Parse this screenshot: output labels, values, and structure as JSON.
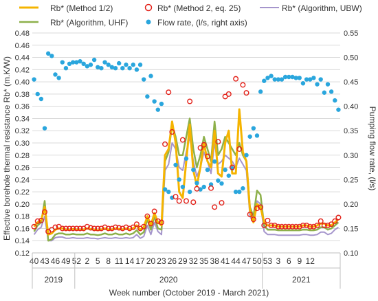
{
  "chart_data": {
    "type": "line",
    "xlabel": "Week number (October 2019 - March 2021)",
    "y_left_label": "Effective borehole thermal resistance Rb* (m.K/W)",
    "y_right_label": "Pumping flow rate, (l/s)",
    "y_left_range": [
      0.12,
      0.48
    ],
    "y_left_ticks": [
      "0.12",
      "0.14",
      "0.16",
      "0.18",
      "0.20",
      "0.22",
      "0.24",
      "0.26",
      "0.28",
      "0.30",
      "0.32",
      "0.34",
      "0.36",
      "0.38",
      "0.40",
      "0.42",
      "0.44",
      "0.46",
      "0.48"
    ],
    "y_right_range": [
      0.1,
      0.55
    ],
    "y_right_ticks": [
      "0.10",
      "0.15",
      "0.20",
      "0.25",
      "0.30",
      "0.35",
      "0.40",
      "0.45",
      "0.50",
      "0.55"
    ],
    "x_tick_labels": [
      "40",
      "43",
      "46",
      "49",
      "52",
      "2",
      "5",
      "8",
      "11",
      "14",
      "17",
      "20",
      "23",
      "26",
      "29",
      "32",
      "35",
      "38",
      "41",
      "44",
      "47",
      "50",
      "53",
      "3",
      "6",
      "9",
      "12"
    ],
    "years": [
      "2019",
      "2020",
      "2021"
    ],
    "grid": "horizontal",
    "legend": [
      {
        "label": "Rb* (Method 1/2)",
        "color": "#f5b400",
        "style": "line"
      },
      {
        "label": "Rb* (Method 2, eq. 25)",
        "color": "#e32119",
        "style": "open-circle"
      },
      {
        "label": "Rb* (Algorithm, UBW)",
        "color": "#a595cc",
        "style": "line"
      },
      {
        "label": "Rb* (Algorithm, UHF)",
        "color": "#8db04a",
        "style": "line"
      },
      {
        "label": "Flow rate, (l/s, right axis)",
        "color": "#2aa6dd",
        "style": "dot"
      }
    ],
    "series": [
      {
        "name": "Rb* (Method 1/2)",
        "axis": "left",
        "values": [
          0.163,
          0.17,
          0.173,
          0.195,
          0.15,
          0.152,
          0.158,
          0.16,
          0.16,
          0.158,
          0.158,
          0.159,
          0.158,
          0.158,
          0.158,
          0.16,
          0.159,
          0.158,
          0.157,
          0.158,
          0.16,
          0.158,
          0.158,
          0.16,
          0.159,
          0.158,
          0.16,
          0.158,
          0.16,
          0.165,
          0.158,
          0.162,
          0.18,
          0.165,
          0.185,
          0.17,
          0.165,
          0.28,
          0.29,
          0.335,
          0.3,
          0.22,
          0.21,
          0.27,
          0.33,
          0.255,
          0.23,
          0.26,
          0.3,
          0.27,
          0.26,
          0.32,
          0.25,
          0.245,
          0.3,
          0.32,
          0.25,
          0.25,
          0.355,
          0.285,
          0.27,
          0.19,
          0.17,
          0.2,
          0.195,
          0.17,
          0.165,
          0.165,
          0.165,
          0.163,
          0.163,
          0.163,
          0.163,
          0.163,
          0.163,
          0.163,
          0.165,
          0.165,
          0.163,
          0.163,
          0.165,
          0.168,
          0.168,
          0.165,
          0.165,
          0.17,
          0.175
        ]
      },
      {
        "name": "Rb* (Algorithm, UHF)",
        "axis": "left",
        "values": [
          0.155,
          0.165,
          0.17,
          0.205,
          0.14,
          0.142,
          0.15,
          0.152,
          0.152,
          0.15,
          0.15,
          0.151,
          0.15,
          0.15,
          0.15,
          0.152,
          0.15,
          0.15,
          0.149,
          0.15,
          0.152,
          0.15,
          0.15,
          0.152,
          0.15,
          0.15,
          0.152,
          0.15,
          0.152,
          0.157,
          0.15,
          0.154,
          0.175,
          0.158,
          0.18,
          0.16,
          0.158,
          0.27,
          0.285,
          0.33,
          0.31,
          0.28,
          0.28,
          0.31,
          0.34,
          0.29,
          0.26,
          0.28,
          0.31,
          0.29,
          0.27,
          0.335,
          0.28,
          0.29,
          0.31,
          0.3,
          0.29,
          0.28,
          0.3,
          0.28,
          0.27,
          0.195,
          0.18,
          0.222,
          0.215,
          0.165,
          0.158,
          0.158,
          0.158,
          0.157,
          0.157,
          0.157,
          0.157,
          0.157,
          0.157,
          0.157,
          0.158,
          0.158,
          0.157,
          0.157,
          0.158,
          0.162,
          0.162,
          0.158,
          0.16,
          0.165,
          0.17
        ]
      },
      {
        "name": "Rb* (Algorithm, UBW)",
        "axis": "left",
        "values": [
          0.15,
          0.158,
          0.162,
          0.18,
          0.14,
          0.14,
          0.145,
          0.146,
          0.146,
          0.144,
          0.144,
          0.145,
          0.144,
          0.144,
          0.144,
          0.145,
          0.144,
          0.144,
          0.143,
          0.144,
          0.145,
          0.144,
          0.144,
          0.145,
          0.144,
          0.144,
          0.145,
          0.144,
          0.145,
          0.15,
          0.144,
          0.147,
          0.165,
          0.15,
          0.17,
          0.155,
          0.15,
          0.255,
          0.265,
          0.3,
          0.29,
          0.26,
          0.255,
          0.285,
          0.31,
          0.27,
          0.245,
          0.26,
          0.285,
          0.27,
          0.25,
          0.3,
          0.265,
          0.27,
          0.28,
          0.275,
          0.27,
          0.26,
          0.275,
          0.265,
          0.255,
          0.18,
          0.17,
          0.205,
          0.2,
          0.155,
          0.15,
          0.15,
          0.15,
          0.149,
          0.149,
          0.149,
          0.149,
          0.149,
          0.149,
          0.149,
          0.15,
          0.15,
          0.149,
          0.149,
          0.15,
          0.154,
          0.154,
          0.15,
          0.152,
          0.158,
          0.162
        ]
      },
      {
        "name": "Rb* (Method 2, eq. 25)",
        "axis": "left",
        "values": [
          0.163,
          0.172,
          0.173,
          0.187,
          0.155,
          0.158,
          0.162,
          0.163,
          0.16,
          0.16,
          0.16,
          0.16,
          0.16,
          0.16,
          0.16,
          0.163,
          0.161,
          0.16,
          0.16,
          0.16,
          0.162,
          0.16,
          0.16,
          0.162,
          0.161,
          0.16,
          0.162,
          0.16,
          0.162,
          0.167,
          0.16,
          0.163,
          0.18,
          0.168,
          0.188,
          0.172,
          0.17,
          0.298,
          0.383,
          0.318,
          0.212,
          0.205,
          0.305,
          0.205,
          0.368,
          0.203,
          0.225,
          0.292,
          0.297,
          0.278,
          0.226,
          0.195,
          0.302,
          0.202,
          0.376,
          0.38,
          0.26,
          0.405,
          0.29,
          0.395,
          0.382,
          0.183,
          0.175,
          0.193,
          0.195,
          0.165,
          0.173,
          0.165,
          0.165,
          0.163,
          0.163,
          0.163,
          0.163,
          0.163,
          0.163,
          0.163,
          0.165,
          0.165,
          0.163,
          0.163,
          0.165,
          0.172,
          0.165,
          0.165,
          0.167,
          0.172,
          0.178
        ]
      },
      {
        "name": "Flow rate, (l/s, right axis)",
        "axis": "right",
        "values": [
          0.455,
          0.425,
          0.415,
          0.355,
          0.508,
          0.503,
          0.465,
          0.458,
          0.49,
          0.478,
          0.487,
          0.49,
          0.49,
          0.492,
          0.487,
          0.482,
          0.485,
          0.495,
          0.48,
          0.478,
          0.49,
          0.485,
          0.48,
          0.478,
          0.488,
          0.478,
          0.485,
          0.478,
          0.485,
          0.475,
          0.485,
          0.455,
          0.42,
          0.462,
          0.41,
          0.393,
          0.405,
          0.23,
          0.225,
          0.213,
          0.28,
          0.25,
          0.235,
          0.293,
          0.225,
          0.27,
          0.243,
          0.23,
          0.235,
          0.27,
          0.24,
          0.287,
          0.248,
          0.242,
          0.27,
          0.258,
          0.273,
          0.225,
          0.225,
          0.232,
          0.3,
          0.338,
          0.355,
          0.34,
          0.43,
          0.452,
          0.458,
          0.462,
          0.455,
          0.455,
          0.455,
          0.46,
          0.46,
          0.46,
          0.458,
          0.458,
          0.447,
          0.455,
          0.455,
          0.458,
          0.445,
          0.455,
          0.428,
          0.445,
          0.43,
          0.412,
          0.393
        ]
      }
    ]
  }
}
